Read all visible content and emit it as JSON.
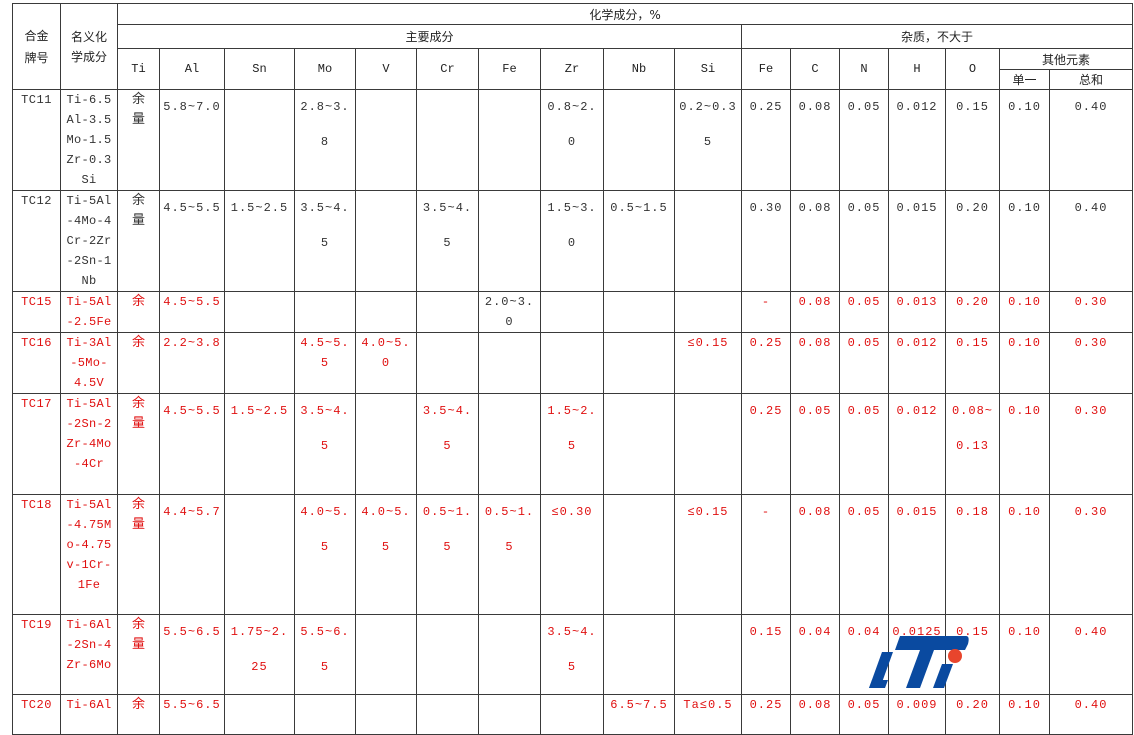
{
  "header": {
    "alloy_grade": "合金牌号",
    "nominal_composition": "名义化学成分",
    "chemical_composition": "化学成分，%",
    "main_components": "主要成分",
    "impurities": "杂质，不大于",
    "main_columns": [
      "Ti",
      "Al",
      "Sn",
      "Mo",
      "V",
      "Cr",
      "Fe",
      "Zr",
      "Nb",
      "Si"
    ],
    "impurity_columns": [
      "Fe",
      "C",
      "N",
      "H",
      "O"
    ],
    "other_elements": "其他元素",
    "other_single": "单一",
    "other_total": "总和"
  },
  "colors": {
    "default_text": "#333333",
    "highlight_text": "#e01010",
    "border": "#3a3a3a",
    "logo_blue": "#0a4aa0",
    "logo_red": "#e8452c"
  },
  "rows": [
    {
      "code": "TC11",
      "name": "Ti-6.5Al-3.5Mo-1.5Zr-0.3Si",
      "ti": "余量",
      "highlight": false,
      "compact": false,
      "height": 101,
      "cells": [
        "5.8~7.0",
        "",
        "2.8~3.8",
        "",
        "",
        "",
        "0.8~2.0",
        "",
        "0.2~0.35",
        "0.25",
        "0.08",
        "0.05",
        "0.012",
        "0.15",
        "0.10",
        "0.40"
      ],
      "plain_cells": []
    },
    {
      "code": "TC12",
      "name": "Ti-5Al-4Mo-4Cr-2Zr-2Sn-1Nb",
      "ti": "余量",
      "highlight": false,
      "compact": false,
      "height": 100,
      "cells": [
        "4.5~5.5",
        "1.5~2.5",
        "3.5~4.5",
        "",
        "3.5~4.5",
        "",
        "1.5~3.0",
        "0.5~1.5",
        "",
        "0.30",
        "0.08",
        "0.05",
        "0.015",
        "0.20",
        "0.10",
        "0.40"
      ],
      "plain_cells": []
    },
    {
      "code": "TC15",
      "name": "Ti-5Al-2.5Fe",
      "ti": "余",
      "highlight": true,
      "compact": true,
      "height": 41,
      "cells": [
        "4.5~5.5",
        "",
        "",
        "",
        "",
        "2.0~3.0",
        "",
        "",
        "",
        "-",
        "0.08",
        "0.05",
        "0.013",
        "0.20",
        "0.10",
        "0.30"
      ],
      "plain_cells": [
        5
      ]
    },
    {
      "code": "TC16",
      "name": "Ti-3Al-5Mo-4.5V",
      "ti": "余",
      "highlight": true,
      "compact": true,
      "height": 60,
      "cells": [
        "2.2~3.8",
        "",
        "4.5~5.5",
        "4.0~5.0",
        "",
        "",
        "",
        "",
        "≤0.15",
        "0.25",
        "0.08",
        "0.05",
        "0.012",
        "0.15",
        "0.10",
        "0.30"
      ],
      "plain_cells": []
    },
    {
      "code": "TC17",
      "name": "Ti-5Al-2Sn-2Zr-4Mo-4Cr",
      "ti": "余量",
      "highlight": true,
      "compact": false,
      "height": 101,
      "cells": [
        "4.5~5.5",
        "1.5~2.5",
        "3.5~4.5",
        "",
        "3.5~4.5",
        "",
        "1.5~2.5",
        "",
        "",
        "0.25",
        "0.05",
        "0.05",
        "0.012",
        "0.08~0.13",
        "0.10",
        "0.30"
      ],
      "plain_cells": []
    },
    {
      "code": "TC18",
      "name": "Ti-5Al-4.75Mo-4.75v-1Cr-1Fe",
      "ti": "余量",
      "highlight": true,
      "compact": false,
      "height": 120,
      "cells": [
        "4.4~5.7",
        "",
        "4.0~5.5",
        "4.0~5.5",
        "0.5~1.5",
        "0.5~1.5",
        "≤0.30",
        "",
        "≤0.15",
        "-",
        "0.08",
        "0.05",
        "0.015",
        "0.18",
        "0.10",
        "0.30"
      ],
      "plain_cells": []
    },
    {
      "code": "TC19",
      "name": "Ti-6Al-2Sn-4Zr-6Mo",
      "ti": "余量",
      "highlight": true,
      "compact": false,
      "height": 80,
      "cells": [
        "5.5~6.5",
        "1.75~2.25",
        "5.5~6.5",
        "",
        "",
        "",
        "3.5~4.5",
        "",
        "",
        "0.15",
        "0.04",
        "0.04",
        "0.0125",
        "0.15",
        "0.10",
        "0.40"
      ],
      "plain_cells": []
    },
    {
      "code": "TC20",
      "name": "Ti-6Al",
      "ti": "余",
      "highlight": true,
      "compact": true,
      "height": 40,
      "cells": [
        "5.5~6.5",
        "",
        "",
        "",
        "",
        "",
        "",
        "6.5~7.5",
        "Ta≤0.5",
        "0.25",
        "0.08",
        "0.05",
        "0.009",
        "0.20",
        "0.10",
        "0.40"
      ],
      "plain_cells": []
    }
  ],
  "logo": {
    "text": "LTi"
  }
}
